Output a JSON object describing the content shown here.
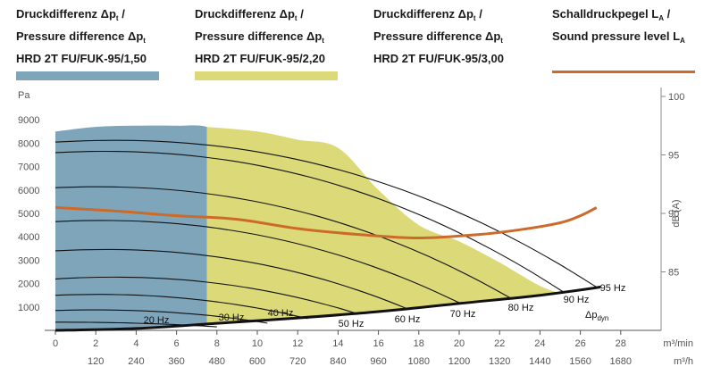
{
  "legend": [
    {
      "line1": "Druckdifferenz Δp",
      "line2": "Pressure difference Δp",
      "sub": "t",
      "post": " /",
      "line3": "HRD 2T FU/FUK-95/1,50",
      "color": "#7fa5bb",
      "kind": "area"
    },
    {
      "line1": "Druckdifferenz Δp",
      "line2": "Pressure difference Δp",
      "sub": "t",
      "post": " /",
      "line3": "HRD 2T FU/FUK-95/2,20",
      "color": "#dcd978",
      "kind": "area"
    },
    {
      "line1": "Druckdifferenz Δp",
      "line2": "Pressure difference Δp",
      "sub": "t",
      "post": " /",
      "line3": "HRD 2T FU/FUK-95/3,00",
      "color": "#ffffff",
      "kind": "area"
    },
    {
      "line1": "Schalldruckpegel L",
      "line2": "Sound pressure level L",
      "sub": "A",
      "post": " /",
      "line3": "",
      "color": "#cc6a2a",
      "kind": "line"
    }
  ],
  "chart_data": {
    "type": "line",
    "x_unit": "m³/min",
    "x2_unit": "m³/h",
    "y_unit": "Pa",
    "y2_label": "dB (A)",
    "xlim": [
      0,
      30
    ],
    "ylim": [
      0,
      10000
    ],
    "y2lim": [
      80,
      100
    ],
    "x_ticks": [
      "0",
      "2",
      "4",
      "6",
      "8",
      "10",
      "12",
      "14",
      "16",
      "18",
      "20",
      "22",
      "24",
      "26",
      "28"
    ],
    "x2_ticks": [
      "120",
      "240",
      "360",
      "480",
      "600",
      "720",
      "840",
      "960",
      "1080",
      "1200",
      "1320",
      "1440",
      "1560",
      "1680"
    ],
    "y_ticks": [
      "1000",
      "2000",
      "3000",
      "4000",
      "5000",
      "6000",
      "7000",
      "8000",
      "9000"
    ],
    "y2_ticks": [
      "85",
      "90",
      "95",
      "100"
    ],
    "areas": [
      {
        "model": "HRD 2T FU/FUK-95/1,50",
        "color": "#7fa5bb",
        "x": [
          0,
          2,
          4,
          6,
          7.5,
          8.5,
          10,
          12,
          14,
          16,
          18,
          20
        ],
        "y": [
          8500,
          8700,
          8750,
          8750,
          8700,
          8100,
          6700,
          5400,
          4500,
          3300,
          2200,
          1150
        ]
      },
      {
        "model": "HRD 2T FU/FUK-95/2,20",
        "color": "#dcd978",
        "x": [
          7.5,
          10,
          12,
          14,
          16,
          18,
          20,
          22,
          24,
          25.2
        ],
        "y": [
          8700,
          8500,
          8150,
          7800,
          6000,
          4500,
          3800,
          2900,
          1900,
          1550
        ]
      }
    ],
    "pressure_dyn": {
      "label": "Δp",
      "sub": "dyn",
      "x": [
        0,
        4,
        8,
        12,
        16,
        20,
        24,
        27
      ],
      "y": [
        0,
        80,
        300,
        530,
        800,
        1150,
        1500,
        1850
      ]
    },
    "speed_curves": [
      {
        "label": "20 Hz",
        "x_end": 8.0,
        "y0": 350,
        "y_peak": 350,
        "y_end": 150
      },
      {
        "label": "30 Hz",
        "x_end": 10.5,
        "y0": 850,
        "y_peak": 900,
        "y_end": 310
      },
      {
        "label": "40 Hz",
        "x_end": 12.5,
        "y0": 1500,
        "y_peak": 1580,
        "y_end": 500
      },
      {
        "label": "50 Hz",
        "x_end": 15.0,
        "y0": 2200,
        "y_peak": 2350,
        "y_end": 700
      },
      {
        "label": "60 Hz",
        "x_end": 17.5,
        "y0": 3400,
        "y_peak": 3550,
        "y_end": 900
      },
      {
        "label": "70 Hz",
        "x_end": 20.0,
        "y0": 4650,
        "y_peak": 4800,
        "y_end": 1180
      },
      {
        "label": "80 Hz",
        "x_end": 22.5,
        "y0": 6100,
        "y_peak": 6250,
        "y_end": 1400
      },
      {
        "label": "90 Hz",
        "x_end": 25.2,
        "y0": 7600,
        "y_peak": 7800,
        "y_end": 1620
      },
      {
        "label": "95 Hz",
        "x_end": 26.8,
        "y0": 8050,
        "y_peak": 8300,
        "y_end": 1850
      }
    ],
    "sound_level": {
      "color": "#cc6a2a",
      "x": [
        0,
        3,
        6,
        9,
        12,
        15,
        18,
        21,
        23,
        25,
        26,
        26.8
      ],
      "y": [
        90.5,
        90.2,
        89.8,
        89.5,
        88.7,
        88.2,
        87.9,
        88.2,
        88.6,
        89.2,
        89.8,
        90.5
      ]
    }
  }
}
